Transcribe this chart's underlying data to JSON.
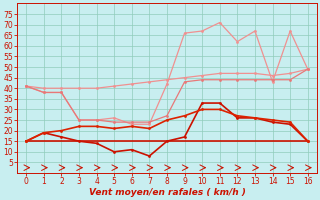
{
  "x": [
    0,
    1,
    2,
    3,
    4,
    5,
    6,
    7,
    8,
    9,
    10,
    11,
    12,
    13,
    14,
    15,
    16
  ],
  "line1_lighpink_zigzag": [
    41,
    38,
    38,
    25,
    25,
    26,
    23,
    23,
    42,
    66,
    67,
    71,
    62,
    67,
    43,
    67,
    49
  ],
  "line2_pink_smooth": [
    41,
    40,
    40,
    40,
    40,
    41,
    42,
    43,
    44,
    45,
    46,
    47,
    47,
    47,
    46,
    47,
    49
  ],
  "line3_pink_dip": [
    41,
    38,
    38,
    25,
    25,
    24,
    24,
    24,
    27,
    43,
    44,
    44,
    44,
    44,
    44,
    44,
    49
  ],
  "line4_darkred_zigzag": [
    15,
    19,
    17,
    15,
    14,
    10,
    11,
    8,
    15,
    17,
    33,
    33,
    26,
    26,
    24,
    23,
    15
  ],
  "line5_darkred_flat": [
    15,
    15,
    15,
    15,
    15,
    15,
    15,
    15,
    15,
    15,
    15,
    15,
    15,
    15,
    15,
    15,
    15
  ],
  "line6_darkred_medium": [
    15,
    19,
    20,
    22,
    22,
    21,
    22,
    21,
    25,
    27,
    30,
    30,
    27,
    26,
    25,
    24,
    15
  ],
  "color_light_pink": "#f09090",
  "color_medium_pink": "#e87878",
  "color_dark_red": "#cc1100",
  "color_mid_red": "#dd2200",
  "bg_color": "#c8eef0",
  "grid_color": "#90ccbb",
  "xlabel": "Vent moyen/en rafales ( km/h )",
  "ylim": [
    0,
    80
  ],
  "xlim": [
    -0.5,
    16.5
  ],
  "yticks": [
    5,
    10,
    15,
    20,
    25,
    30,
    35,
    40,
    45,
    50,
    55,
    60,
    65,
    70,
    75
  ],
  "xticks": [
    0,
    1,
    2,
    3,
    4,
    5,
    6,
    7,
    8,
    9,
    10,
    11,
    12,
    13,
    14,
    15,
    16
  ]
}
